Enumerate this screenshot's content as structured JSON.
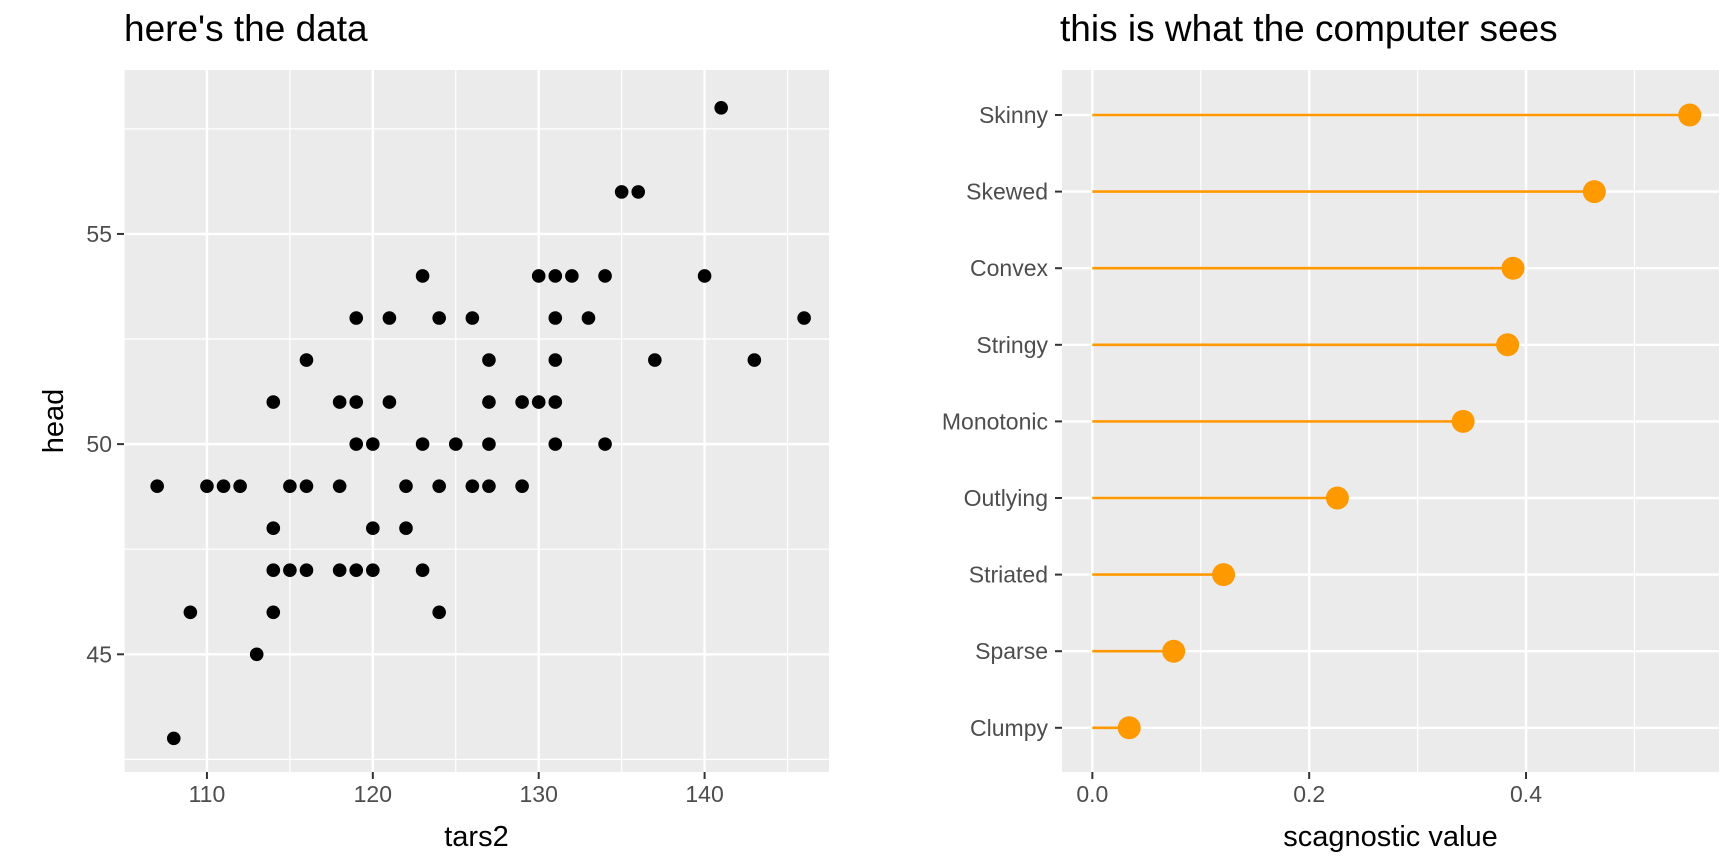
{
  "chart_data": [
    {
      "type": "scatter",
      "title": "here's the data",
      "xlabel": "tars2",
      "ylabel": "head",
      "xlim": [
        105.0,
        147.5
      ],
      "ylim": [
        42.2,
        58.9
      ],
      "xticks": [
        110,
        120,
        130,
        140
      ],
      "yticks": [
        45,
        50,
        55
      ],
      "grid": true,
      "point_color": "#000000",
      "points": [
        [
          141,
          58
        ],
        [
          135,
          56
        ],
        [
          136,
          56
        ],
        [
          123,
          54
        ],
        [
          130,
          54
        ],
        [
          131,
          54
        ],
        [
          132,
          54
        ],
        [
          134,
          54
        ],
        [
          140,
          54
        ],
        [
          119,
          53
        ],
        [
          121,
          53
        ],
        [
          124,
          53
        ],
        [
          126,
          53
        ],
        [
          131,
          53
        ],
        [
          133,
          53
        ],
        [
          146,
          53
        ],
        [
          116,
          52
        ],
        [
          127,
          52
        ],
        [
          131,
          52
        ],
        [
          137,
          52
        ],
        [
          143,
          52
        ],
        [
          114,
          51
        ],
        [
          118,
          51
        ],
        [
          119,
          51
        ],
        [
          121,
          51
        ],
        [
          127,
          51
        ],
        [
          129,
          51
        ],
        [
          130,
          51
        ],
        [
          131,
          51
        ],
        [
          119,
          50
        ],
        [
          120,
          50
        ],
        [
          123,
          50
        ],
        [
          125,
          50
        ],
        [
          127,
          50
        ],
        [
          131,
          50
        ],
        [
          134,
          50
        ],
        [
          107,
          49
        ],
        [
          110,
          49
        ],
        [
          111,
          49
        ],
        [
          112,
          49
        ],
        [
          115,
          49
        ],
        [
          116,
          49
        ],
        [
          118,
          49
        ],
        [
          122,
          49
        ],
        [
          124,
          49
        ],
        [
          126,
          49
        ],
        [
          127,
          49
        ],
        [
          129,
          49
        ],
        [
          114,
          48
        ],
        [
          120,
          48
        ],
        [
          122,
          48
        ],
        [
          114,
          47
        ],
        [
          115,
          47
        ],
        [
          116,
          47
        ],
        [
          118,
          47
        ],
        [
          119,
          47
        ],
        [
          120,
          47
        ],
        [
          123,
          47
        ],
        [
          109,
          46
        ],
        [
          114,
          46
        ],
        [
          124,
          46
        ],
        [
          113,
          45
        ],
        [
          108,
          43
        ]
      ]
    },
    {
      "type": "lollipop",
      "title": "this is what the computer sees",
      "xlabel": "scagnostic value",
      "ylabel": "",
      "xlim": [
        -0.028,
        0.578
      ],
      "xticks": [
        0.0,
        0.2,
        0.4
      ],
      "xtick_labels": [
        "0.0",
        "0.2",
        "0.4"
      ],
      "grid": true,
      "point_color": "#FF9900",
      "categories": [
        "Skinny",
        "Skewed",
        "Convex",
        "Stringy",
        "Monotonic",
        "Outlying",
        "Striated",
        "Sparse",
        "Clumpy"
      ],
      "values": [
        0.551,
        0.463,
        0.388,
        0.383,
        0.342,
        0.226,
        0.121,
        0.075,
        0.034
      ]
    }
  ]
}
